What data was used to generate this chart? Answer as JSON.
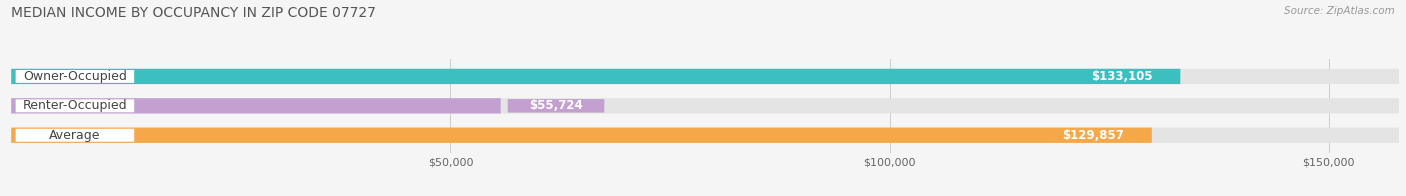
{
  "title": "MEDIAN INCOME BY OCCUPANCY IN ZIP CODE 07727",
  "source": "Source: ZipAtlas.com",
  "categories": [
    "Owner-Occupied",
    "Renter-Occupied",
    "Average"
  ],
  "values": [
    133105,
    55724,
    129857
  ],
  "bar_colors": [
    "#3bbfbf",
    "#c4a0d0",
    "#f5a84a"
  ],
  "bar_bg_color": "#e4e4e4",
  "label_colors": [
    "#ffffff",
    "#777777",
    "#ffffff"
  ],
  "value_labels": [
    "$133,105",
    "$55,724",
    "$129,857"
  ],
  "x_tick_labels": [
    "$50,000",
    "$100,000",
    "$150,000"
  ],
  "x_ticks": [
    50000,
    100000,
    150000
  ],
  "xlim": [
    0,
    158000
  ],
  "background_color": "#f5f5f5",
  "bar_height": 0.52,
  "title_fontsize": 10,
  "label_fontsize": 9,
  "value_fontsize": 8.5,
  "tick_fontsize": 8
}
